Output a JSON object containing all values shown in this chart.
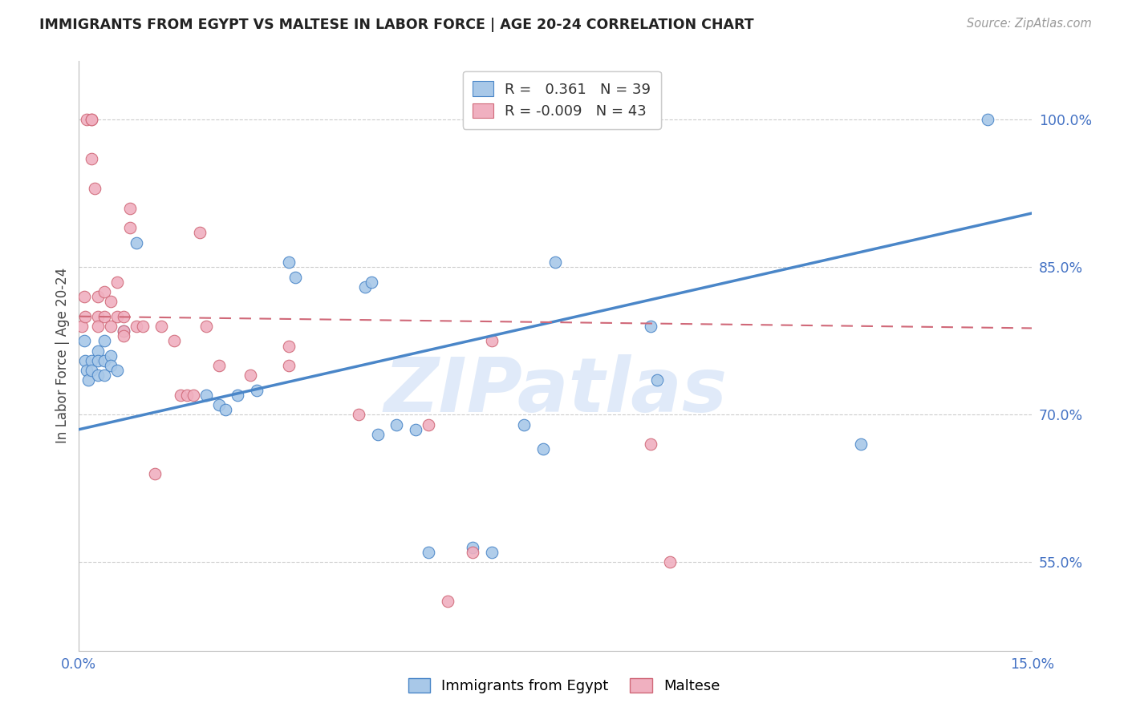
{
  "title": "IMMIGRANTS FROM EGYPT VS MALTESE IN LABOR FORCE | AGE 20-24 CORRELATION CHART",
  "source": "Source: ZipAtlas.com",
  "ylabel": "In Labor Force | Age 20-24",
  "xmin": 0.0,
  "xmax": 0.15,
  "ymin": 0.46,
  "ymax": 1.06,
  "yticks": [
    0.55,
    0.7,
    0.85,
    1.0
  ],
  "ytick_labels": [
    "55.0%",
    "70.0%",
    "85.0%",
    "100.0%"
  ],
  "xtick_vals": [
    0.0,
    0.03,
    0.06,
    0.09,
    0.12,
    0.15
  ],
  "xtick_labels": [
    "0.0%",
    "",
    "",
    "",
    "",
    "15.0%"
  ],
  "legend_blue_r": "0.361",
  "legend_blue_n": "39",
  "legend_pink_r": "-0.009",
  "legend_pink_n": "43",
  "blue_scatter_color": "#a8c8e8",
  "blue_edge_color": "#4a86c8",
  "pink_scatter_color": "#f0b0c0",
  "pink_edge_color": "#d06878",
  "blue_line_color": "#4a86c8",
  "pink_line_color": "#d06878",
  "title_color": "#222222",
  "axis_tick_color": "#4472c4",
  "grid_color": "#cccccc",
  "watermark_text": "ZIPatlas",
  "watermark_color": "#ccddf5",
  "blue_x": [
    0.0008,
    0.001,
    0.0012,
    0.0015,
    0.002,
    0.002,
    0.003,
    0.003,
    0.003,
    0.004,
    0.004,
    0.004,
    0.005,
    0.005,
    0.006,
    0.007,
    0.009,
    0.02,
    0.022,
    0.023,
    0.025,
    0.028,
    0.033,
    0.034,
    0.045,
    0.046,
    0.047,
    0.05,
    0.053,
    0.055,
    0.062,
    0.065,
    0.07,
    0.073,
    0.075,
    0.09,
    0.091,
    0.123,
    0.143
  ],
  "blue_y": [
    0.775,
    0.755,
    0.745,
    0.735,
    0.755,
    0.745,
    0.765,
    0.755,
    0.74,
    0.775,
    0.755,
    0.74,
    0.76,
    0.75,
    0.745,
    0.785,
    0.875,
    0.72,
    0.71,
    0.705,
    0.72,
    0.725,
    0.855,
    0.84,
    0.83,
    0.835,
    0.68,
    0.69,
    0.685,
    0.56,
    0.565,
    0.56,
    0.69,
    0.665,
    0.855,
    0.79,
    0.735,
    0.67,
    1.0
  ],
  "pink_x": [
    0.0005,
    0.0008,
    0.001,
    0.0012,
    0.002,
    0.002,
    0.002,
    0.0025,
    0.003,
    0.003,
    0.003,
    0.004,
    0.004,
    0.005,
    0.005,
    0.006,
    0.006,
    0.007,
    0.007,
    0.007,
    0.008,
    0.008,
    0.009,
    0.01,
    0.012,
    0.013,
    0.015,
    0.016,
    0.017,
    0.018,
    0.019,
    0.02,
    0.022,
    0.027,
    0.033,
    0.033,
    0.044,
    0.055,
    0.058,
    0.062,
    0.065,
    0.09,
    0.093
  ],
  "pink_y": [
    0.79,
    0.82,
    0.8,
    1.0,
    1.0,
    1.0,
    0.96,
    0.93,
    0.8,
    0.82,
    0.79,
    0.825,
    0.8,
    0.815,
    0.79,
    0.8,
    0.835,
    0.8,
    0.785,
    0.78,
    0.91,
    0.89,
    0.79,
    0.79,
    0.64,
    0.79,
    0.775,
    0.72,
    0.72,
    0.72,
    0.885,
    0.79,
    0.75,
    0.74,
    0.77,
    0.75,
    0.7,
    0.69,
    0.51,
    0.56,
    0.775,
    0.67,
    0.55
  ],
  "blue_trendline_x": [
    0.0,
    0.15
  ],
  "blue_trendline_y": [
    0.685,
    0.905
  ],
  "pink_trendline_x": [
    0.0,
    0.15
  ],
  "pink_trendline_y": [
    0.8,
    0.788
  ]
}
